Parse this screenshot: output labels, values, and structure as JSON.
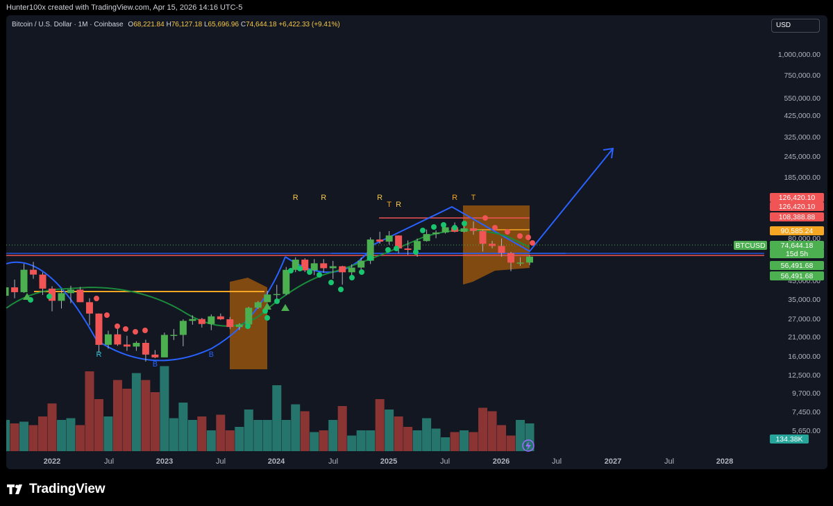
{
  "header": {
    "attribution": "Hunter100x created with TradingView.com, Apr 15, 2026 14:16 UTC-5"
  },
  "legend": {
    "symbol": "Bitcoin / U.S. Dollar · 1M · Coinbase",
    "open_label": "O",
    "open": "68,221.84",
    "high_label": "H",
    "high": "76,127.18",
    "low_label": "L",
    "low": "65,696.96",
    "close_label": "C",
    "close": "74,644.18",
    "change": "+6,422.33 (+9.41%)"
  },
  "currency": "USD",
  "footer": {
    "brand": "TradingView"
  },
  "colors": {
    "up": "#4caf50",
    "down": "#f05454",
    "vol_up": "#26756d",
    "vol_down": "#8b3434",
    "blue": "#2962ff",
    "green_ma": "#1b8a3a",
    "dots": "#18c56e",
    "orange": "#f5a623",
    "zone": "#a0580c",
    "red_line": "#f05454"
  },
  "chart_data": {
    "type": "candlestick",
    "symbol": "BTCUSD",
    "timeframe": "1M",
    "x_ticks": [
      "2022",
      "Jul",
      "2023",
      "Jul",
      "2024",
      "Jul",
      "2025",
      "Jul",
      "2026",
      "Jul",
      "2027",
      "Jul",
      "2028"
    ],
    "y_ticks": [
      "1,000,000.00",
      "750,000.00",
      "550,000.00",
      "425,000.00",
      "325,000.00",
      "245,000.00",
      "185,000.00",
      "80,000.00",
      "45,000.00",
      "35,000.00",
      "27,000.00",
      "21,000.00",
      "16,000.00",
      "12,500.00",
      "9,700.00",
      "7,450.00",
      "5,650.00"
    ],
    "y_scale": "log",
    "candles": [
      {
        "date": "2021-08",
        "o": 41500,
        "h": 50000,
        "l": 37500,
        "c": 47100
      },
      {
        "date": "2021-09",
        "o": 47100,
        "h": 52900,
        "l": 40000,
        "c": 43800
      },
      {
        "date": "2021-10",
        "o": 43800,
        "h": 67000,
        "l": 43300,
        "c": 61300
      },
      {
        "date": "2021-11",
        "o": 61300,
        "h": 69000,
        "l": 53500,
        "c": 57000
      },
      {
        "date": "2021-12",
        "o": 57000,
        "h": 59000,
        "l": 42000,
        "c": 46200
      },
      {
        "date": "2022-01",
        "o": 46200,
        "h": 47900,
        "l": 32900,
        "c": 38500
      },
      {
        "date": "2022-02",
        "o": 38500,
        "h": 45800,
        "l": 34300,
        "c": 43200
      },
      {
        "date": "2022-03",
        "o": 43200,
        "h": 48200,
        "l": 37200,
        "c": 45500
      },
      {
        "date": "2022-04",
        "o": 45500,
        "h": 47400,
        "l": 37700,
        "c": 37700
      },
      {
        "date": "2022-05",
        "o": 37700,
        "h": 40000,
        "l": 26700,
        "c": 31800
      },
      {
        "date": "2022-06",
        "o": 31800,
        "h": 31900,
        "l": 17600,
        "c": 19900
      },
      {
        "date": "2022-07",
        "o": 19900,
        "h": 24600,
        "l": 18800,
        "c": 23300
      },
      {
        "date": "2022-08",
        "o": 23300,
        "h": 25200,
        "l": 19600,
        "c": 20000
      },
      {
        "date": "2022-09",
        "o": 20000,
        "h": 22800,
        "l": 18200,
        "c": 19400
      },
      {
        "date": "2022-10",
        "o": 19400,
        "h": 21000,
        "l": 18200,
        "c": 20500
      },
      {
        "date": "2022-11",
        "o": 20500,
        "h": 21500,
        "l": 15500,
        "c": 17200
      },
      {
        "date": "2022-12",
        "o": 17200,
        "h": 18400,
        "l": 16300,
        "c": 16500
      },
      {
        "date": "2023-01",
        "o": 16500,
        "h": 23900,
        "l": 16500,
        "c": 23100
      },
      {
        "date": "2023-02",
        "o": 23100,
        "h": 25200,
        "l": 21400,
        "c": 23100
      },
      {
        "date": "2023-03",
        "o": 23100,
        "h": 29200,
        "l": 19500,
        "c": 28500
      },
      {
        "date": "2023-04",
        "o": 28500,
        "h": 31000,
        "l": 26900,
        "c": 29300
      },
      {
        "date": "2023-05",
        "o": 29300,
        "h": 29800,
        "l": 25800,
        "c": 27200
      },
      {
        "date": "2023-06",
        "o": 27200,
        "h": 31400,
        "l": 24800,
        "c": 30500
      },
      {
        "date": "2023-07",
        "o": 30500,
        "h": 31800,
        "l": 28900,
        "c": 29200
      },
      {
        "date": "2023-08",
        "o": 29200,
        "h": 30200,
        "l": 25200,
        "c": 26000
      },
      {
        "date": "2023-09",
        "o": 26000,
        "h": 27500,
        "l": 24900,
        "c": 27000
      },
      {
        "date": "2023-10",
        "o": 27000,
        "h": 35200,
        "l": 26600,
        "c": 34700
      },
      {
        "date": "2023-11",
        "o": 34700,
        "h": 38400,
        "l": 34100,
        "c": 37700
      },
      {
        "date": "2023-12",
        "o": 37700,
        "h": 44700,
        "l": 37600,
        "c": 42300
      },
      {
        "date": "2024-01",
        "o": 42300,
        "h": 48900,
        "l": 38500,
        "c": 42600
      },
      {
        "date": "2024-02",
        "o": 42600,
        "h": 63900,
        "l": 41900,
        "c": 61200
      },
      {
        "date": "2024-03",
        "o": 61200,
        "h": 73800,
        "l": 59100,
        "c": 71300
      },
      {
        "date": "2024-04",
        "o": 71300,
        "h": 72800,
        "l": 59200,
        "c": 60700
      },
      {
        "date": "2024-05",
        "o": 60700,
        "h": 71900,
        "l": 56600,
        "c": 67500
      },
      {
        "date": "2024-06",
        "o": 67500,
        "h": 71900,
        "l": 58600,
        "c": 62700
      },
      {
        "date": "2024-07",
        "o": 62700,
        "h": 70000,
        "l": 53500,
        "c": 64600
      },
      {
        "date": "2024-08",
        "o": 64600,
        "h": 65100,
        "l": 49000,
        "c": 59000
      },
      {
        "date": "2024-09",
        "o": 59000,
        "h": 66500,
        "l": 52600,
        "c": 63300
      },
      {
        "date": "2024-10",
        "o": 63300,
        "h": 73600,
        "l": 58900,
        "c": 70200
      },
      {
        "date": "2024-11",
        "o": 70200,
        "h": 99600,
        "l": 66800,
        "c": 96400
      },
      {
        "date": "2024-12",
        "o": 96400,
        "h": 108300,
        "l": 90500,
        "c": 93400
      },
      {
        "date": "2025-01",
        "o": 93400,
        "h": 109300,
        "l": 89200,
        "c": 102400
      },
      {
        "date": "2025-02",
        "o": 102400,
        "h": 102500,
        "l": 78200,
        "c": 84300
      },
      {
        "date": "2025-03",
        "o": 84300,
        "h": 95000,
        "l": 76600,
        "c": 82500
      },
      {
        "date": "2025-04",
        "o": 82500,
        "h": 97900,
        "l": 74400,
        "c": 94200
      },
      {
        "date": "2025-05",
        "o": 94200,
        "h": 111900,
        "l": 93400,
        "c": 104600
      },
      {
        "date": "2025-06",
        "o": 104600,
        "h": 110500,
        "l": 98200,
        "c": 107100
      },
      {
        "date": "2025-07",
        "o": 107100,
        "h": 123200,
        "l": 105300,
        "c": 115700
      },
      {
        "date": "2025-08",
        "o": 115700,
        "h": 124500,
        "l": 107300,
        "c": 108200
      },
      {
        "date": "2025-09",
        "o": 108200,
        "h": 117900,
        "l": 107300,
        "c": 114000
      },
      {
        "date": "2025-10",
        "o": 114000,
        "h": 126420,
        "l": 103500,
        "c": 109600
      },
      {
        "date": "2025-11",
        "o": 109600,
        "h": 110600,
        "l": 80500,
        "c": 90400
      },
      {
        "date": "2025-12",
        "o": 90400,
        "h": 94500,
        "l": 84500,
        "c": 87500
      },
      {
        "date": "2026-01",
        "o": 87500,
        "h": 97900,
        "l": 74500,
        "c": 78700
      },
      {
        "date": "2026-02",
        "o": 78700,
        "h": 80000,
        "l": 60000,
        "c": 68200
      },
      {
        "date": "2026-03",
        "o": 68200,
        "h": 74000,
        "l": 65000,
        "c": 68221.84
      },
      {
        "date": "2026-04",
        "o": 68221.84,
        "h": 76127.18,
        "l": 65696.96,
        "c": 74644.18
      }
    ],
    "volume_ticks_shown": false,
    "price_labels": [
      {
        "text": "126,420.10",
        "color": "#f05454"
      },
      {
        "text": "126,420.10",
        "color": "#f05454"
      },
      {
        "text": "108,388.88",
        "color": "#f05454"
      },
      {
        "text": "90,585.24",
        "color": "#f5a623"
      },
      {
        "text": "BTCUSD",
        "color": "#4caf50"
      },
      {
        "text": "74,644.18",
        "color": "#4caf50"
      },
      {
        "text": "15d 5h",
        "color": "#4caf50"
      },
      {
        "text": "56,491.68",
        "color": "#4caf50"
      },
      {
        "text": "56,491.68",
        "color": "#4caf50"
      },
      {
        "text": "134.38K",
        "color": "#26a69a"
      }
    ],
    "signal_labels": [
      {
        "text": "R",
        "color": "#26c6da",
        "date": "2022-06"
      },
      {
        "text": "B",
        "color": "#2962ff",
        "date": "2022-12"
      },
      {
        "text": "B",
        "color": "#2962ff",
        "date": "2023-06"
      },
      {
        "text": "R",
        "color": "#f7c948",
        "date": "2024-03"
      },
      {
        "text": "R",
        "color": "#f7c948",
        "date": "2024-06"
      },
      {
        "text": "R",
        "color": "#f7c948",
        "date": "2024-12"
      },
      {
        "text": "T",
        "color": "#f5a623",
        "date": "2025-01"
      },
      {
        "text": "R",
        "color": "#f7c948",
        "date": "2025-02"
      },
      {
        "text": "R",
        "color": "#f5a623",
        "date": "2025-08"
      },
      {
        "text": "T",
        "color": "#f5a623",
        "date": "2025-10"
      }
    ]
  }
}
